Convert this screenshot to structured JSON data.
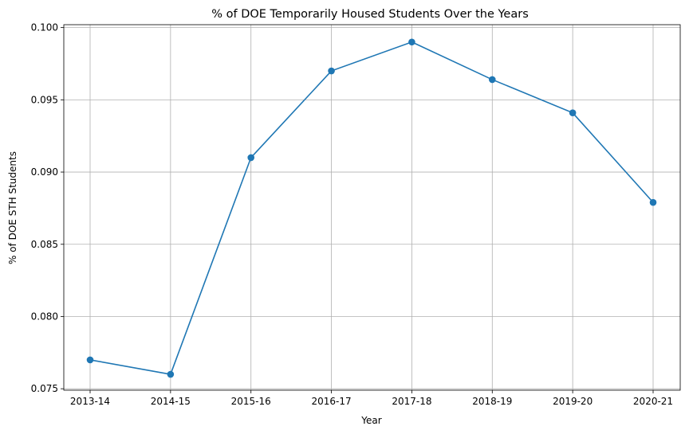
{
  "chart_data": {
    "type": "line",
    "title": "% of DOE Temporarily Housed Students Over the Years",
    "xlabel": "Year",
    "ylabel": "% of DOE STH Students",
    "categories": [
      "2013-14",
      "2014-15",
      "2015-16",
      "2016-17",
      "2017-18",
      "2018-19",
      "2019-20",
      "2020-21"
    ],
    "series": [
      {
        "values": [
          0.077,
          0.076,
          0.091,
          0.097,
          0.099,
          0.0964,
          0.0941,
          0.0879
        ],
        "color": "#1f77b4",
        "marker": "circle"
      }
    ],
    "ylim": [
      0.0749,
      0.1002
    ],
    "yticks": [
      0.075,
      0.08,
      0.085,
      0.09,
      0.095,
      0.1
    ],
    "ytick_labels": [
      "0.075",
      "0.080",
      "0.085",
      "0.090",
      "0.095",
      "0.100"
    ],
    "grid": true,
    "legend": "none"
  }
}
